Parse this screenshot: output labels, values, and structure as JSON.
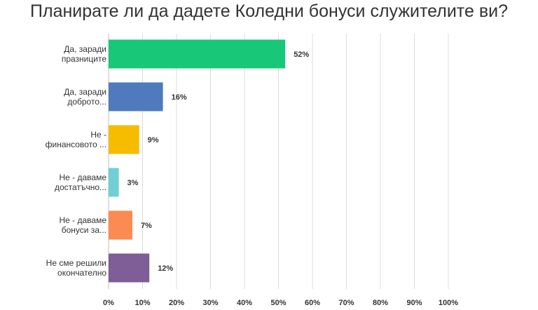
{
  "chart_data": {
    "type": "bar",
    "orientation": "horizontal",
    "title": "Планирате ли да дадете Коледни бонуси служителите ви?",
    "categories": [
      [
        "Да, заради",
        "празниците"
      ],
      [
        "Да, заради",
        "доброто..."
      ],
      [
        "Не -",
        "финансовото ..."
      ],
      [
        "Не - даваме",
        "достатъчно..."
      ],
      [
        "Не - даваме",
        "бонуси за..."
      ],
      [
        "Не сме решили",
        "окончателно"
      ]
    ],
    "values": [
      52,
      16,
      9,
      3,
      7,
      12
    ],
    "value_labels": [
      "52%",
      "16%",
      "9%",
      "3%",
      "7%",
      "12%"
    ],
    "colors": [
      "#18c777",
      "#4f7bbe",
      "#f6bc00",
      "#6fcfd3",
      "#fb8b50",
      "#7f5d96"
    ],
    "xlim": [
      0,
      100
    ],
    "x_ticks": [
      0,
      10,
      20,
      30,
      40,
      50,
      60,
      70,
      80,
      90,
      100
    ],
    "x_tick_labels": [
      "0%",
      "10%",
      "20%",
      "30%",
      "40%",
      "50%",
      "60%",
      "70%",
      "80%",
      "90%",
      "100%"
    ],
    "grid": true,
    "legend": "none"
  }
}
